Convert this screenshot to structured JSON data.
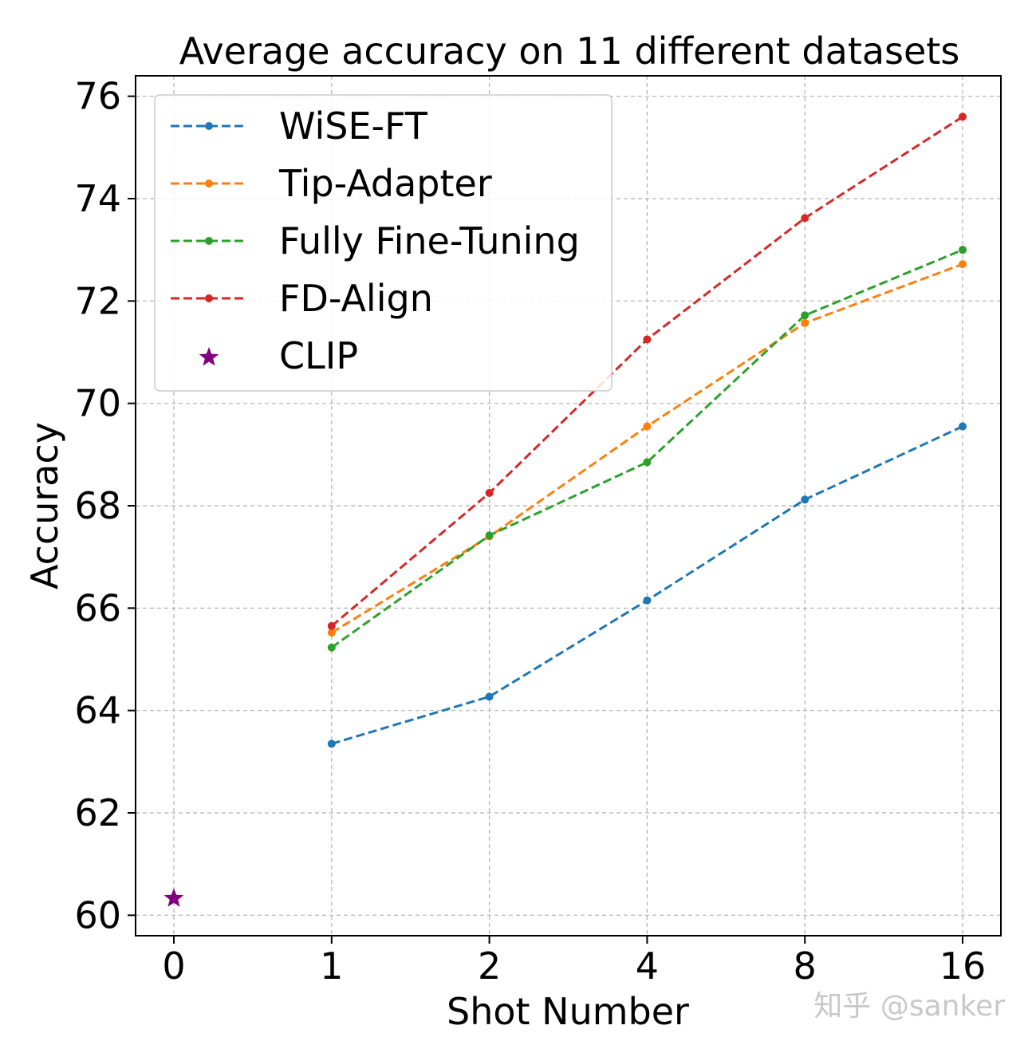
{
  "chart_data": {
    "type": "line",
    "title": "Average accuracy on 11 different datasets",
    "xlabel": "Shot Number",
    "ylabel": "Accuracy",
    "x": [
      0,
      1,
      2,
      4,
      8,
      16
    ],
    "x_tick_labels": [
      "0",
      "1",
      "2",
      "4",
      "8",
      "16"
    ],
    "y_ticks": [
      60,
      62,
      64,
      66,
      68,
      70,
      72,
      74,
      76
    ],
    "y_tick_labels": [
      "60",
      "62",
      "64",
      "66",
      "68",
      "70",
      "72",
      "74",
      "76"
    ],
    "ylim": [
      59.6,
      76.4
    ],
    "grid": true,
    "legend_position": "top-left",
    "series": [
      {
        "name": "WiSE-FT",
        "color": "#1f77b4",
        "linestyle": "dashed",
        "marker": "dot",
        "x": [
          "1",
          "2",
          "4",
          "8",
          "16"
        ],
        "values": [
          63.35,
          64.27,
          66.15,
          68.12,
          69.55
        ]
      },
      {
        "name": "Tip-Adapter",
        "color": "#ff7f0e",
        "linestyle": "dashed",
        "marker": "dot",
        "x": [
          "1",
          "2",
          "4",
          "8",
          "16"
        ],
        "values": [
          65.52,
          67.4,
          69.55,
          71.57,
          72.72
        ]
      },
      {
        "name": "Fully Fine-Tuning",
        "color": "#2ca02c",
        "linestyle": "dashed",
        "marker": "dot",
        "x": [
          "1",
          "2",
          "4",
          "8",
          "16"
        ],
        "values": [
          65.23,
          67.42,
          68.85,
          71.72,
          73.0
        ]
      },
      {
        "name": "FD-Align",
        "color": "#d62728",
        "linestyle": "dashed",
        "marker": "dot",
        "x": [
          "1",
          "2",
          "4",
          "8",
          "16"
        ],
        "values": [
          65.65,
          68.25,
          71.25,
          73.62,
          75.6
        ]
      },
      {
        "name": "CLIP",
        "color": "#800080",
        "linestyle": "none",
        "marker": "star",
        "x": [
          "0"
        ],
        "values": [
          60.33
        ]
      }
    ]
  },
  "watermark": "知乎 @sanker"
}
